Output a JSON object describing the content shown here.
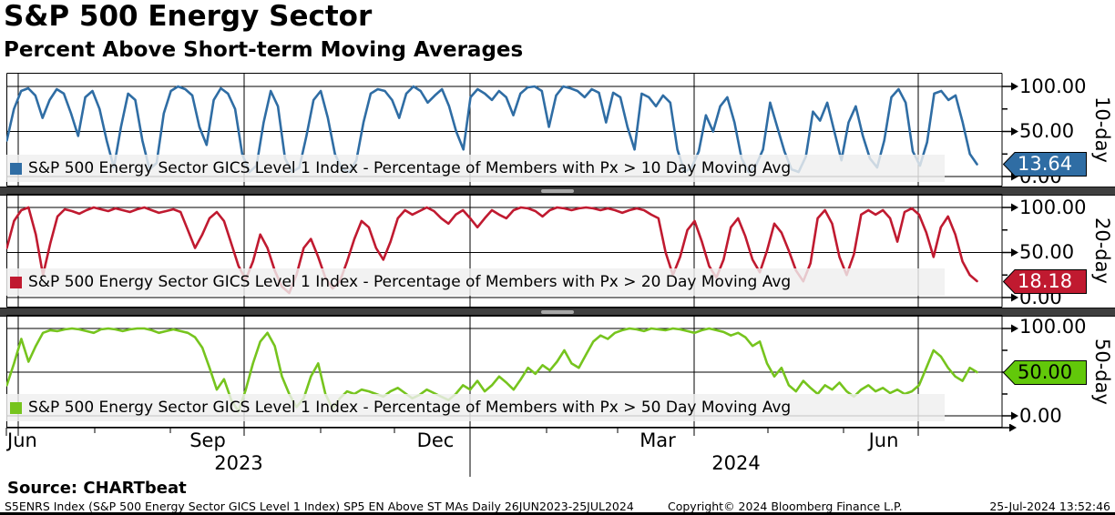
{
  "header": {
    "title": "S&P 500 Energy Sector",
    "subtitle": "Percent Above Short-term Moving Averages"
  },
  "chart_data": {
    "type": "line",
    "title": "S&P 500 Energy Sector",
    "subtitle": "Percent Above Short-term Moving Averages",
    "ylim": [
      0,
      100
    ],
    "y_ticks": [
      "100.00",
      "50.00",
      "0.00"
    ],
    "x_axis": {
      "month_labels": [
        "Jun",
        "Sep",
        "Dec",
        "Mar",
        "Jun"
      ],
      "year_labels": [
        "2023",
        "2024"
      ],
      "range": "26JUN2023-25JUL2024"
    },
    "panels": [
      {
        "side_label": "10-day",
        "legend": "S&P 500 Energy Sector GICS Level 1 Index - Percentage of Members with Px > 10 Day Moving Avg",
        "color": "#2F6DA4",
        "badge_color": "#2F6DA4",
        "badge_text_color": "#FFFFFF",
        "last_value": 13.64,
        "last_label": "13.64",
        "values": [
          40,
          75,
          95,
          98,
          90,
          65,
          85,
          97,
          92,
          70,
          45,
          88,
          95,
          75,
          40,
          10,
          55,
          92,
          85,
          40,
          8,
          15,
          70,
          95,
          100,
          97,
          90,
          55,
          35,
          85,
          98,
          92,
          75,
          25,
          5,
          12,
          60,
          95,
          78,
          20,
          5,
          10,
          45,
          85,
          95,
          65,
          25,
          8,
          5,
          18,
          60,
          92,
          97,
          95,
          85,
          65,
          92,
          100,
          95,
          82,
          90,
          97,
          78,
          50,
          30,
          88,
          97,
          92,
          85,
          95,
          88,
          68,
          92,
          99,
          100,
          95,
          55,
          90,
          100,
          98,
          95,
          88,
          97,
          93,
          60,
          93,
          88,
          55,
          30,
          92,
          88,
          78,
          90,
          82,
          30,
          5,
          10,
          28,
          68,
          50,
          78,
          88,
          60,
          20,
          5,
          12,
          30,
          82,
          55,
          28,
          8,
          5,
          22,
          72,
          62,
          82,
          50,
          18,
          60,
          78,
          45,
          20,
          10,
          40,
          88,
          97,
          82,
          28,
          12,
          38,
          92,
          95,
          85,
          90,
          60,
          25,
          13.64
        ]
      },
      {
        "side_label": "20-day",
        "legend": "S&P 500 Energy Sector GICS Level 1 Index - Percentage of Members with Px > 20 Day Moving Avg",
        "color": "#C01A30",
        "badge_color": "#C01A30",
        "badge_text_color": "#FFFFFF",
        "last_value": 18.18,
        "last_label": "18.18",
        "values": [
          55,
          85,
          97,
          100,
          70,
          25,
          60,
          90,
          98,
          96,
          93,
          97,
          100,
          98,
          96,
          99,
          97,
          95,
          98,
          100,
          97,
          94,
          96,
          98,
          95,
          75,
          55,
          70,
          88,
          95,
          85,
          60,
          35,
          20,
          40,
          70,
          55,
          30,
          12,
          5,
          25,
          55,
          65,
          45,
          22,
          10,
          18,
          40,
          65,
          85,
          78,
          55,
          42,
          62,
          88,
          97,
          92,
          96,
          100,
          96,
          88,
          82,
          92,
          97,
          88,
          78,
          88,
          97,
          92,
          88,
          97,
          100,
          99,
          96,
          90,
          97,
          100,
          99,
          97,
          99,
          100,
          99,
          97,
          99,
          97,
          94,
          97,
          99,
          97,
          92,
          88,
          50,
          25,
          45,
          75,
          85,
          62,
          35,
          22,
          42,
          78,
          88,
          68,
          42,
          28,
          52,
          82,
          72,
          52,
          30,
          18,
          38,
          88,
          97,
          82,
          45,
          25,
          48,
          92,
          97,
          92,
          97,
          88,
          62,
          95,
          99,
          92,
          72,
          45,
          78,
          90,
          70,
          40,
          25,
          18.18
        ]
      },
      {
        "side_label": "50-day",
        "legend": "S&P 500 Energy Sector GICS Level 1 Index - Percentage of Members with Px > 50 Day Moving Avg",
        "color": "#76C41E",
        "badge_color": "#62C80A",
        "badge_text_color": "#000000",
        "last_value": 50.0,
        "last_label": "50.00",
        "values": [
          35,
          60,
          88,
          62,
          80,
          95,
          98,
          97,
          99,
          100,
          99,
          97,
          95,
          99,
          100,
          99,
          97,
          99,
          100,
          100,
          98,
          95,
          97,
          99,
          97,
          95,
          90,
          78,
          55,
          30,
          42,
          18,
          5,
          30,
          60,
          85,
          95,
          80,
          45,
          25,
          10,
          20,
          45,
          60,
          25,
          8,
          20,
          28,
          25,
          30,
          28,
          25,
          22,
          28,
          32,
          26,
          20,
          24,
          30,
          26,
          22,
          18,
          25,
          35,
          30,
          40,
          28,
          35,
          45,
          38,
          30,
          42,
          55,
          48,
          58,
          52,
          62,
          75,
          60,
          55,
          70,
          85,
          92,
          88,
          95,
          98,
          100,
          99,
          97,
          100,
          99,
          98,
          100,
          99,
          97,
          95,
          98,
          100,
          98,
          96,
          92,
          95,
          90,
          80,
          85,
          60,
          45,
          55,
          35,
          28,
          40,
          32,
          25,
          35,
          30,
          38,
          28,
          22,
          30,
          35,
          28,
          32,
          26,
          30,
          25,
          28,
          35,
          55,
          75,
          68,
          55,
          45,
          40,
          55,
          50.0
        ]
      }
    ]
  },
  "footer": {
    "source": "Source: CHARTbeat",
    "left": "S5ENRS Index (S&P 500 Energy Sector GICS Level 1 Index) SP5 EN Above ST MAs  Daily 26JUN2023-25JUL2024",
    "center": "Copyright© 2024 Bloomberg Finance L.P.",
    "right": "25-Jul-2024 13:52:46"
  }
}
